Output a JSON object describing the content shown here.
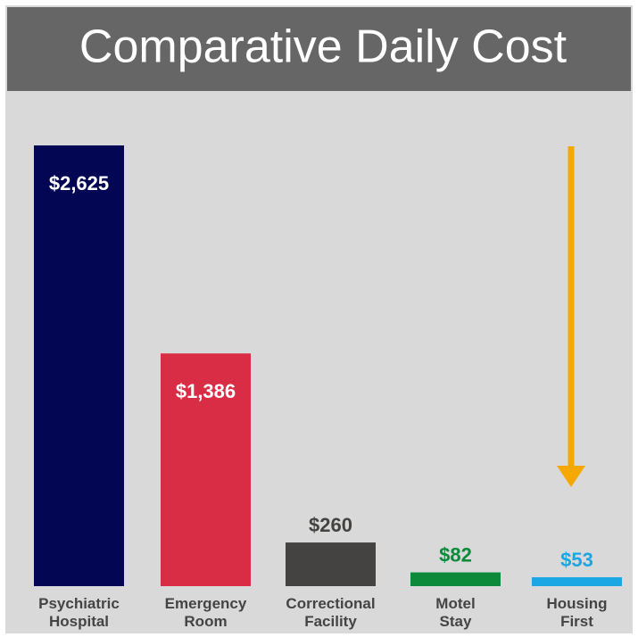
{
  "chart_data": {
    "type": "bar",
    "title": "Comparative Daily Cost",
    "categories": [
      "Psychiatric Hospital",
      "Emergency Room",
      "Correctional Facility",
      "Motel Stay",
      "Housing First"
    ],
    "values": [
      2625,
      1386,
      260,
      82,
      53
    ],
    "value_labels": [
      "$2,625",
      "$1,386",
      "$260",
      "$82",
      "$53"
    ],
    "colors": [
      "#020653",
      "#d92d45",
      "#444341",
      "#0c8a3a",
      "#1ba6e4"
    ],
    "ylim": [
      0,
      2625
    ]
  }
}
